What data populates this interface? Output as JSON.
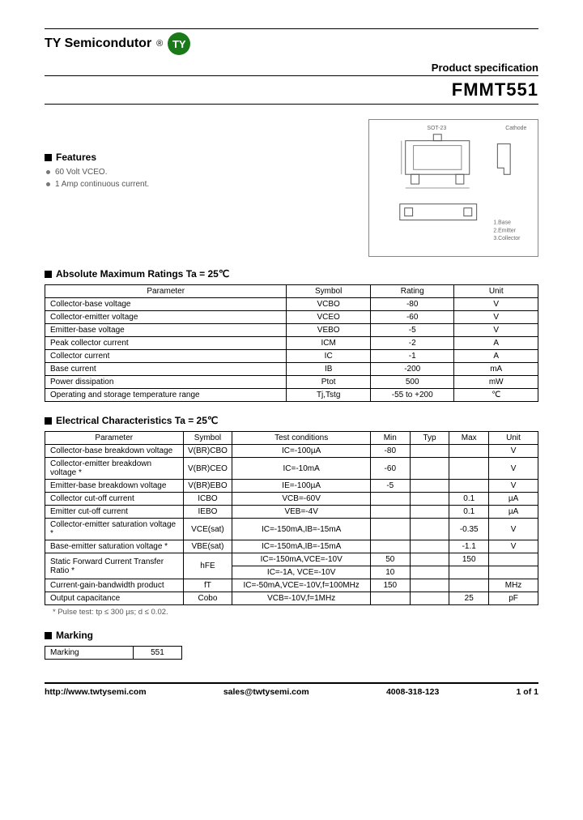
{
  "header": {
    "brand": "TY Semicondutor",
    "logo_text": "TY",
    "logo_bg": "#1a7a1a",
    "spec_label": "Product specification",
    "part_number": "FMMT551"
  },
  "features": {
    "heading": "Features",
    "items": [
      "60 Volt VCEO.",
      "1 Amp continuous current."
    ]
  },
  "package": {
    "top_label": "SOT-23",
    "right_label": "Cathode",
    "pin1": "1.Base",
    "pin2": "2.Emitter",
    "pin3": "3.Collector"
  },
  "abs": {
    "heading": "Absolute Maximum Ratings Ta = 25℃",
    "cols": [
      "Parameter",
      "Symbol",
      "Rating",
      "Unit"
    ],
    "rows": [
      [
        "Collector-base voltage",
        "VCBO",
        "-80",
        "V"
      ],
      [
        "Collector-emitter voltage",
        "VCEO",
        "-60",
        "V"
      ],
      [
        "Emitter-base voltage",
        "VEBO",
        "-5",
        "V"
      ],
      [
        "Peak collector current",
        "ICM",
        "-2",
        "A"
      ],
      [
        "Collector current",
        "IC",
        "-1",
        "A"
      ],
      [
        "Base current",
        "IB",
        "-200",
        "mA"
      ],
      [
        "Power dissipation",
        "Ptot",
        "500",
        "mW"
      ],
      [
        "Operating and storage temperature range",
        "Tj,Tstg",
        "-55 to +200",
        "℃"
      ]
    ]
  },
  "elec": {
    "heading": "Electrical Characteristics Ta = 25℃",
    "cols": [
      "Parameter",
      "Symbol",
      "Test conditions",
      "Min",
      "Typ",
      "Max",
      "Unit"
    ],
    "rows": [
      [
        "Collector-base breakdown voltage",
        "V(BR)CBO",
        "IC=-100µA",
        "-80",
        "",
        "",
        "V"
      ],
      [
        "Collector-emitter breakdown voltage *",
        "V(BR)CEO",
        "IC=-10mA",
        "-60",
        "",
        "",
        "V"
      ],
      [
        "Emitter-base breakdown voltage",
        "V(BR)EBO",
        "IE=-100µA",
        "-5",
        "",
        "",
        "V"
      ],
      [
        "Collector cut-off current",
        "ICBO",
        "VCB=-60V",
        "",
        "",
        "0.1",
        "µA"
      ],
      [
        "Emitter cut-off current",
        "IEBO",
        "VEB=-4V",
        "",
        "",
        "0.1",
        "µA"
      ],
      [
        "Collector-emitter saturation voltage *",
        "VCE(sat)",
        "IC=-150mA,IB=-15mA",
        "",
        "",
        "-0.35",
        "V"
      ],
      [
        "Base-emitter saturation voltage *",
        "VBE(sat)",
        "IC=-150mA,IB=-15mA",
        "",
        "",
        "-1.1",
        "V"
      ]
    ],
    "hfe_param": "Static Forward Current Transfer Ratio *",
    "hfe_sym": "hFE",
    "hfe_r1": [
      "IC=-150mA,VCE=-10V",
      "50",
      "",
      "150",
      ""
    ],
    "hfe_r2": [
      "IC=-1A, VCE=-10V",
      "10",
      "",
      "",
      ""
    ],
    "rows2": [
      [
        "Current-gain-bandwidth product",
        "fT",
        "IC=-50mA,VCE=-10V,f=100MHz",
        "150",
        "",
        "",
        "MHz"
      ],
      [
        "Output capacitance",
        "Cobo",
        "VCB=-10V,f=1MHz",
        "",
        "",
        "25",
        "pF"
      ]
    ],
    "note": "* Pulse test: tp ≤ 300 µs; d ≤ 0.02."
  },
  "marking": {
    "heading": "Marking",
    "label": "Marking",
    "value": "551"
  },
  "footer": {
    "url": "http://www.twtysemi.com",
    "email": "sales@twtysemi.com",
    "phone": "4008-318-123",
    "page": "1 of 1"
  }
}
